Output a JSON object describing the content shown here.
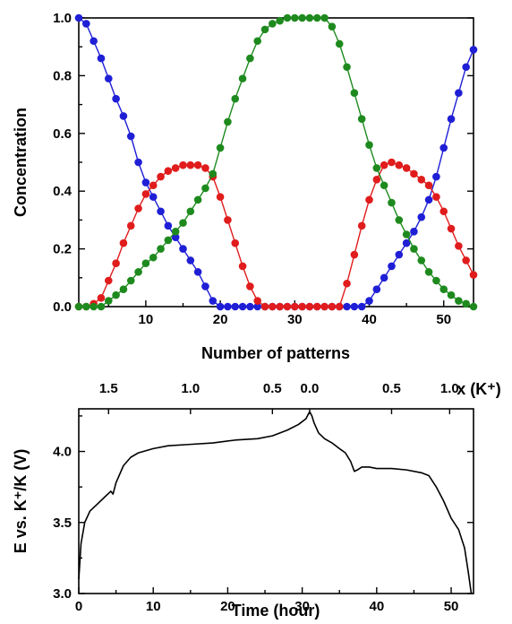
{
  "chart_data": [
    {
      "type": "line",
      "xlabel": "Number of patterns",
      "ylabel": "Concentration",
      "xlim": [
        1,
        54
      ],
      "ylim": [
        0,
        1.0
      ],
      "xticks": [
        "10",
        "20",
        "30",
        "40",
        "50"
      ],
      "yticks": [
        "0.0",
        "0.2",
        "0.4",
        "0.6",
        "0.8",
        "1.0"
      ],
      "grid": false,
      "legend": false,
      "x": [
        1,
        2,
        3,
        4,
        5,
        6,
        7,
        8,
        9,
        10,
        11,
        12,
        13,
        14,
        15,
        16,
        17,
        18,
        19,
        20,
        21,
        22,
        23,
        24,
        25,
        26,
        27,
        28,
        29,
        30,
        31,
        32,
        33,
        34,
        35,
        36,
        37,
        38,
        39,
        40,
        41,
        42,
        43,
        44,
        45,
        46,
        47,
        48,
        49,
        50,
        51,
        52,
        53,
        54
      ],
      "series": [
        {
          "color": "#1f1fd6",
          "marker": "circle",
          "values": [
            1.0,
            0.98,
            0.92,
            0.86,
            0.79,
            0.72,
            0.66,
            0.59,
            0.5,
            0.43,
            0.38,
            0.33,
            0.28,
            0.24,
            0.2,
            0.16,
            0.12,
            0.07,
            0.02,
            0.0,
            0.0,
            0.0,
            0.0,
            0.0,
            0.0,
            0.0,
            0.0,
            0.0,
            0.0,
            0.0,
            0.0,
            0.0,
            0.0,
            0.0,
            0.0,
            0.0,
            0.0,
            0.0,
            0.0,
            0.02,
            0.06,
            0.1,
            0.14,
            0.18,
            0.22,
            0.26,
            0.31,
            0.37,
            0.45,
            0.55,
            0.65,
            0.74,
            0.83,
            0.89
          ]
        },
        {
          "color": "#e01c1c",
          "marker": "circle",
          "values": [
            0.0,
            0.0,
            0.01,
            0.03,
            0.09,
            0.15,
            0.22,
            0.28,
            0.34,
            0.39,
            0.42,
            0.45,
            0.47,
            0.48,
            0.49,
            0.49,
            0.49,
            0.48,
            0.45,
            0.38,
            0.3,
            0.22,
            0.14,
            0.07,
            0.02,
            0.0,
            0.0,
            0.0,
            0.0,
            0.0,
            0.0,
            0.0,
            0.0,
            0.0,
            0.0,
            0.0,
            0.08,
            0.18,
            0.28,
            0.37,
            0.44,
            0.49,
            0.5,
            0.49,
            0.48,
            0.46,
            0.44,
            0.42,
            0.38,
            0.33,
            0.27,
            0.21,
            0.16,
            0.11
          ]
        },
        {
          "color": "#1e8a1e",
          "marker": "circle",
          "values": [
            0.0,
            0.0,
            0.0,
            0.0,
            0.02,
            0.04,
            0.06,
            0.09,
            0.12,
            0.15,
            0.17,
            0.2,
            0.23,
            0.26,
            0.29,
            0.33,
            0.37,
            0.41,
            0.46,
            0.55,
            0.64,
            0.72,
            0.79,
            0.86,
            0.92,
            0.96,
            0.98,
            0.99,
            1.0,
            1.0,
            1.0,
            1.0,
            1.0,
            1.0,
            0.97,
            0.91,
            0.83,
            0.74,
            0.65,
            0.56,
            0.48,
            0.42,
            0.36,
            0.3,
            0.25,
            0.2,
            0.16,
            0.12,
            0.09,
            0.06,
            0.04,
            0.02,
            0.01,
            0.0
          ]
        }
      ]
    },
    {
      "type": "line",
      "xlabel": "Time (hour)",
      "ylabel": "E vs. K⁺/K (V)",
      "xlim": [
        0,
        53
      ],
      "ylim": [
        3.0,
        4.3
      ],
      "xticks": [
        "0",
        "10",
        "20",
        "30",
        "40",
        "50"
      ],
      "yticks": [
        "3.0",
        "3.5",
        "4.0"
      ],
      "top_axis_label": "x (K⁺)",
      "top_ticks": [
        "1.5",
        "1.0",
        "0.5",
        "0.0",
        "0.5",
        "1.0"
      ],
      "grid": false,
      "legend": false,
      "series": [
        {
          "color": "#000000",
          "x": [
            0,
            0.3,
            0.8,
            1.5,
            2.5,
            3.5,
            4.3,
            4.6,
            5.0,
            6.0,
            7.0,
            8.0,
            10.0,
            12.0,
            15.0,
            18.0,
            21.0,
            24.0,
            26.0,
            28.0,
            29.5,
            30.5,
            31.0,
            31.3,
            31.6,
            32.2,
            33.0,
            34.0,
            35.0,
            35.8,
            36.5,
            37.0,
            37.4,
            38.0,
            39.0,
            40.0,
            42.0,
            44.0,
            46.0,
            47.0,
            48.0,
            49.0,
            50.0,
            51.0,
            51.8,
            52.3,
            52.7
          ],
          "values": [
            3.1,
            3.35,
            3.5,
            3.58,
            3.63,
            3.68,
            3.72,
            3.7,
            3.78,
            3.9,
            3.96,
            3.99,
            4.02,
            4.04,
            4.05,
            4.06,
            4.08,
            4.09,
            4.11,
            4.15,
            4.19,
            4.23,
            4.28,
            4.25,
            4.2,
            4.13,
            4.09,
            4.06,
            4.02,
            3.99,
            3.93,
            3.86,
            3.87,
            3.89,
            3.89,
            3.88,
            3.88,
            3.87,
            3.85,
            3.83,
            3.75,
            3.65,
            3.53,
            3.45,
            3.32,
            3.15,
            3.0
          ]
        }
      ]
    }
  ]
}
